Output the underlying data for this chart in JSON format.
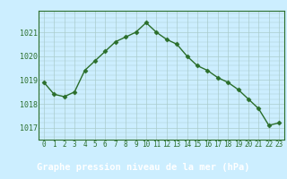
{
  "x": [
    0,
    1,
    2,
    3,
    4,
    5,
    6,
    7,
    8,
    9,
    10,
    11,
    12,
    13,
    14,
    15,
    16,
    17,
    18,
    19,
    20,
    21,
    22,
    23
  ],
  "y": [
    1018.9,
    1018.4,
    1018.3,
    1018.5,
    1019.4,
    1019.8,
    1020.2,
    1020.6,
    1020.8,
    1021.0,
    1021.4,
    1021.0,
    1020.7,
    1020.5,
    1020.0,
    1019.6,
    1019.4,
    1019.1,
    1018.9,
    1018.6,
    1018.2,
    1017.8,
    1017.1,
    1017.2
  ],
  "line_color": "#2a6e2a",
  "marker": "D",
  "marker_size": 2.5,
  "bg_color": "#cceeff",
  "grid_color": "#aacccc",
  "label_bar_color": "#2a6e2a",
  "label_text_color": "#ffffff",
  "tick_text_color": "#2a6e2a",
  "title": "Graphe pression niveau de la mer (hPa)",
  "yticks": [
    1017,
    1018,
    1019,
    1020,
    1021
  ],
  "xtick_labels": [
    "0",
    "1",
    "2",
    "3",
    "4",
    "5",
    "6",
    "7",
    "8",
    "9",
    "10",
    "11",
    "12",
    "13",
    "14",
    "15",
    "16",
    "17",
    "18",
    "19",
    "20",
    "21",
    "22",
    "23"
  ],
  "ylim": [
    1016.5,
    1021.9
  ],
  "xlim": [
    -0.5,
    23.5
  ],
  "title_fontsize": 7.5,
  "tick_fontsize": 6.0,
  "xtick_fontsize": 5.5,
  "linewidth": 1.0
}
